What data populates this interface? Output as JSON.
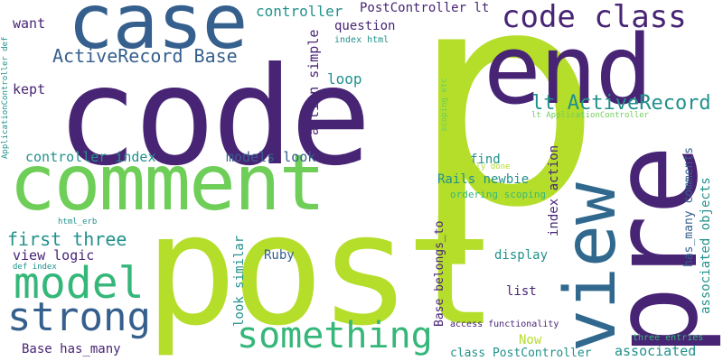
{
  "palette": {
    "lime": "#b5de2b",
    "purple": "#482475",
    "blue": "#355f8d",
    "teal": "#21918c",
    "green": "#35b779",
    "lightgreen": "#6ece58",
    "darkpurple": "#440154",
    "slate": "#31688e"
  },
  "words": [
    "p",
    "code",
    "post",
    "comment",
    "pre",
    "case",
    "end",
    "view",
    "code class",
    "something",
    "strong",
    "model",
    "ActiveRecord Base",
    "lt ActiveRecord",
    "first three",
    "controller",
    "PostController lt",
    "question",
    "want",
    "loop",
    "kept",
    "action simple",
    "index html",
    "controller index",
    "models look",
    "find",
    "Rails newbie",
    "index action",
    "has_many comments",
    "associated objects",
    "normally done",
    "ordering scoping",
    "scoping etc",
    "lt ApplicationController",
    "ApplicationController def",
    "Base belongs_to",
    "display",
    "html_erb",
    "view logic",
    "def index",
    "look similar",
    "Ruby",
    "list",
    "Now",
    "access functionality",
    "three entries",
    "class PostController",
    "associated",
    "Base has_many"
  ]
}
